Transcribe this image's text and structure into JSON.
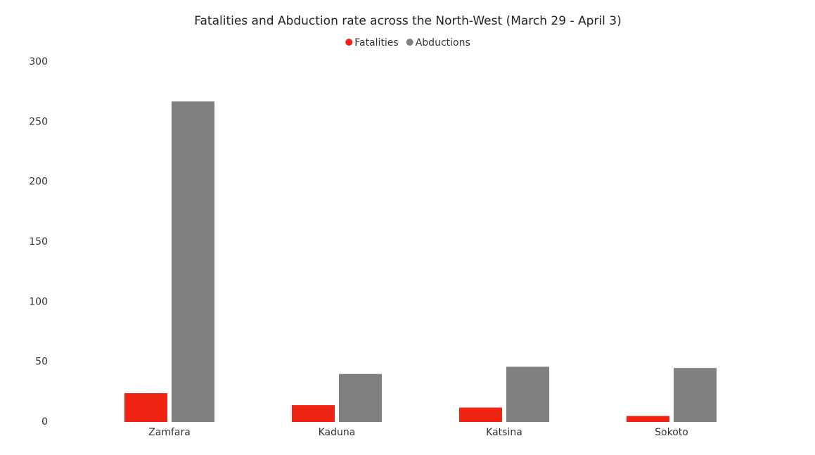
{
  "chart_data": {
    "type": "bar",
    "title": "Fatalities and Abduction rate across the North-West (March 29 - April 3)",
    "categories": [
      "Zamfara",
      "Kaduna",
      "Katsina",
      "Sokoto"
    ],
    "series": [
      {
        "name": "Fatalities",
        "color": "#ef2414",
        "values": [
          24,
          14,
          12,
          5
        ]
      },
      {
        "name": "Abductions",
        "color": "#808080",
        "values": [
          267,
          40,
          46,
          45
        ]
      }
    ],
    "ylim": [
      0,
      300
    ],
    "yticks": [
      0,
      50,
      100,
      150,
      200,
      250,
      300
    ],
    "grid": false,
    "legend": "top"
  }
}
